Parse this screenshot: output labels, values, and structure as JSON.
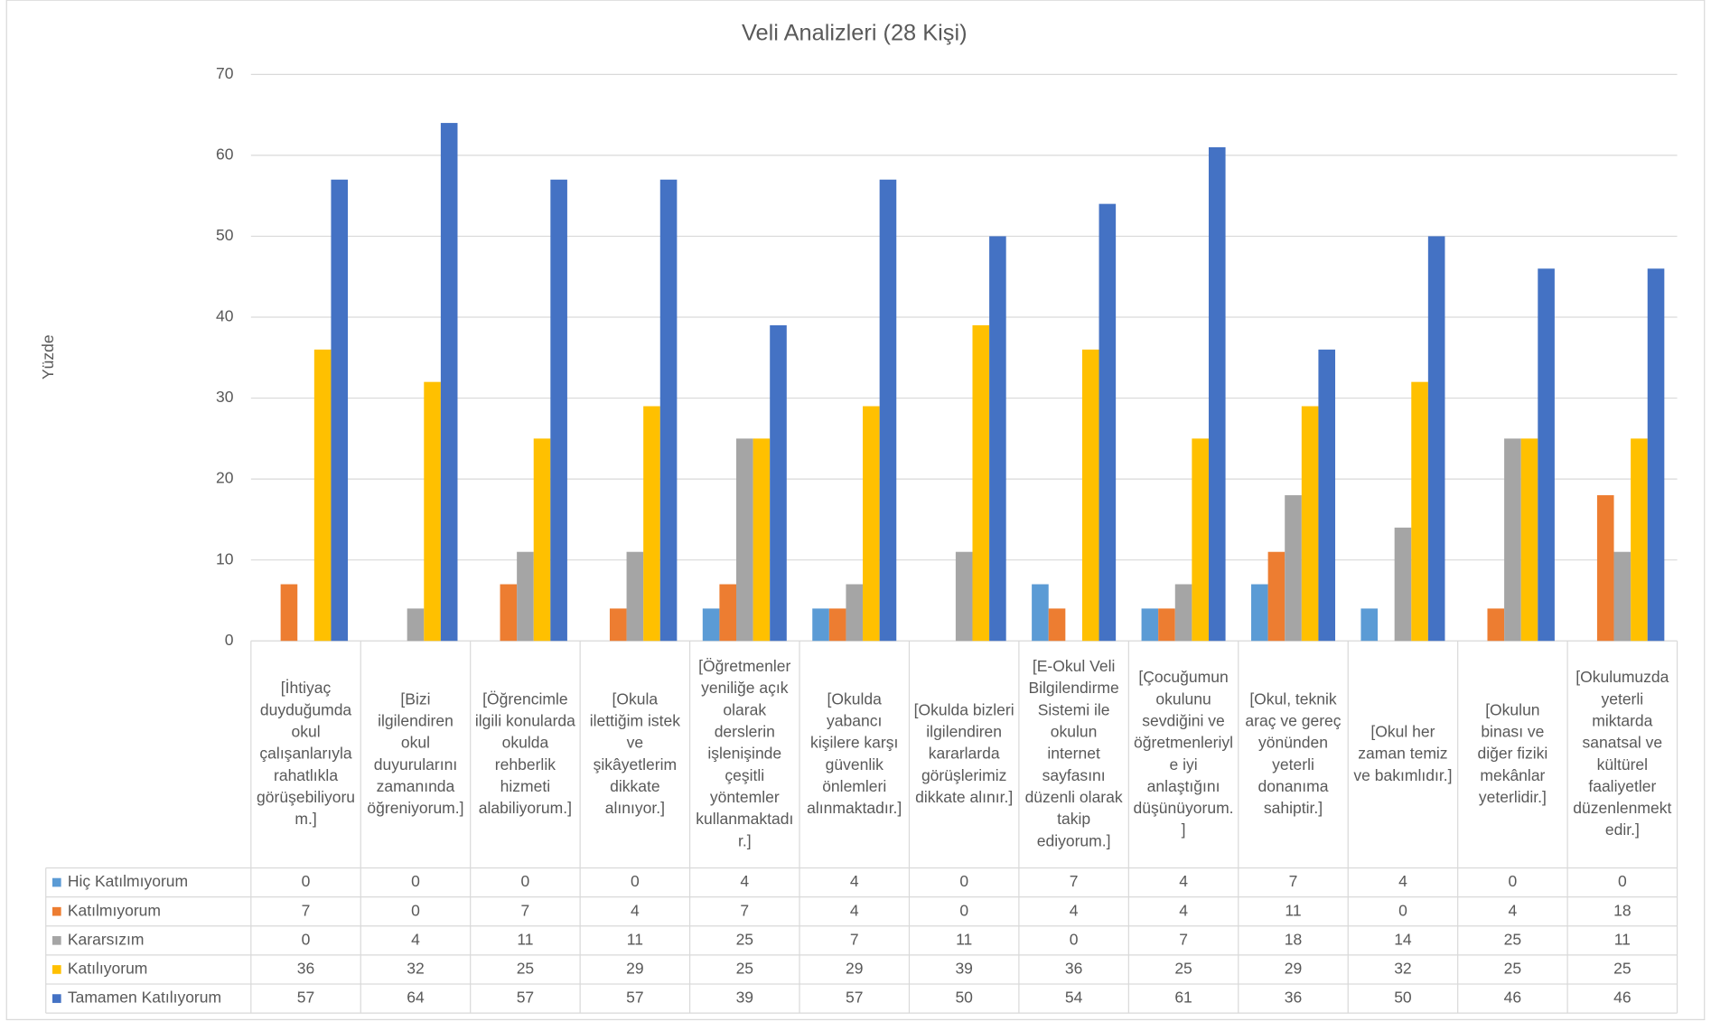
{
  "chart_data": {
    "type": "bar",
    "title": "Veli Analizleri (28 Kişi)",
    "y_label": "Yüzde",
    "categories": [
      "[İhtiyaç duyduğumda okul çalışanlarıyla rahatlıkla görüşebiliyorum.]",
      "[Bizi ilgilendiren okul duyurularını zamanında öğreniyorum.]",
      "[Öğrencimle ilgili konularda okulda rehberlik hizmeti alabiliyorum.]",
      "[Okula ilettiğim istek ve şikâyetlerim dikkate alınıyor.]",
      "[Öğretmenler yeniliğe açık olarak derslerin işlenişinde çeşitli yöntemler kullanmaktadır.]",
      "[Okulda yabancı kişilere karşı güvenlik önlemleri alınmaktadır.]",
      "[Okulda bizleri ilgilendiren kararlarda görüşlerimiz dikkate alınır.]",
      "[E-Okul Veli Bilgilendirme Sistemi ile okulun internet sayfasını düzenli olarak takip ediyorum.]",
      "[Çocuğumun okulunu sevdiğini ve öğretmenleriyle iyi anlaştığını düşünüyorum.]",
      "[Okul, teknik araç ve gereç yönünden yeterli donanıma sahiptir.]",
      "[Okul her zaman temiz ve bakımlıdır.]",
      "[Okulun binası ve diğer fiziki mekânlar yeterlidir.]",
      "[Okulumuzda yeterli miktarda sanatsal ve kültürel faaliyetler düzenlenmektedir.]"
    ],
    "series": [
      {
        "name": "Hiç Katılmıyorum",
        "color": "#5b9bd5",
        "values": [
          0,
          0,
          0,
          0,
          4,
          4,
          0,
          7,
          4,
          7,
          4,
          0,
          0
        ]
      },
      {
        "name": "Katılmıyorum",
        "color": "#ed7d31",
        "values": [
          7,
          0,
          7,
          4,
          7,
          4,
          0,
          4,
          4,
          11,
          0,
          4,
          18
        ]
      },
      {
        "name": "Kararsızım",
        "color": "#a5a5a5",
        "values": [
          0,
          4,
          11,
          11,
          25,
          7,
          11,
          0,
          7,
          18,
          14,
          25,
          11
        ]
      },
      {
        "name": "Katılıyorum",
        "color": "#ffc000",
        "values": [
          36,
          32,
          25,
          29,
          25,
          29,
          39,
          36,
          25,
          29,
          32,
          25,
          25
        ]
      },
      {
        "name": "Tamamen Katılıyorum",
        "color": "#4472c4",
        "values": [
          57,
          64,
          57,
          57,
          39,
          57,
          50,
          54,
          61,
          36,
          50,
          46,
          46
        ]
      }
    ],
    "ylim": [
      0,
      70
    ],
    "yticks": [
      0,
      10,
      20,
      30,
      40,
      50,
      60,
      70
    ],
    "grid": true
  }
}
